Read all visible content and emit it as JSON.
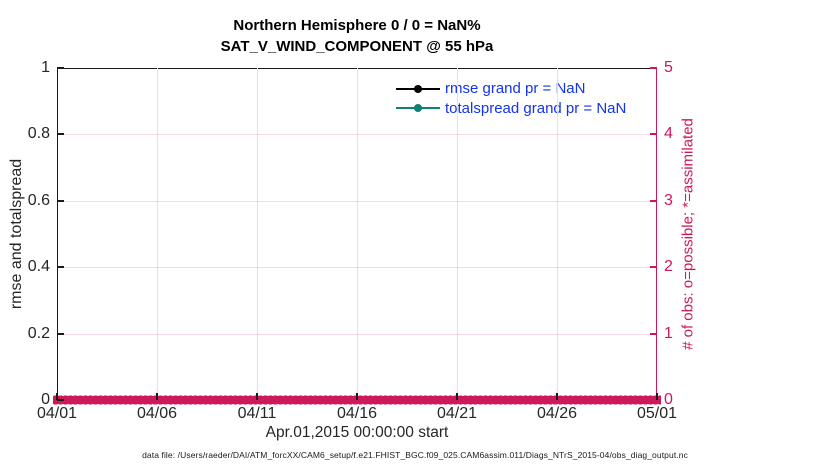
{
  "title": {
    "line1": "Northern Hemisphere 0 / 0 = NaN%",
    "line2": "SAT_V_WIND_COMPONENT @ 55 hPa"
  },
  "axes": {
    "left": {
      "label": "rmse and totalspread",
      "ticks": [
        "0",
        "0.2",
        "0.4",
        "0.6",
        "0.8",
        "1"
      ]
    },
    "right": {
      "label": "# of obs: o=possible; *=assimilated",
      "ticks": [
        "0",
        "1",
        "2",
        "3",
        "4",
        "5"
      ]
    },
    "x": {
      "label": "Apr.01,2015 00:00:00 start",
      "ticks": [
        "04/01",
        "04/06",
        "04/11",
        "04/16",
        "04/21",
        "04/26",
        "05/01"
      ]
    }
  },
  "legend": {
    "items": [
      {
        "label": "rmse grand pr = NaN",
        "color": "#000000"
      },
      {
        "label": "totalspread grand pr = NaN",
        "color": "#0E8177"
      }
    ]
  },
  "footer": "data file: /Users/raeder/DAI/ATM_forcXX/CAM6_setup/f.e21.FHIST_BGC.f09_025.CAM6assim.011/Diags_NTrS_2015-04/obs_diag_output.nc",
  "colors": {
    "crimson": "#CE185C",
    "teal": "#0E8177",
    "legend_text": "#1333EE",
    "tick_text": "#262626",
    "grid_gray": "#E2E2E2"
  },
  "chart_data": {
    "type": "line",
    "title": "Northern Hemisphere 0 / 0 = NaN%",
    "subtitle": "SAT_V_WIND_COMPONENT @ 55 hPa",
    "x": {
      "label": "Apr.01,2015 00:00:00 start",
      "tick_labels": [
        "04/01",
        "04/06",
        "04/11",
        "04/16",
        "04/21",
        "04/26",
        "05/01"
      ],
      "start": "2015-04-01",
      "end": "2015-05-01"
    },
    "y_left": {
      "label": "rmse and totalspread",
      "lim": [
        0,
        1
      ],
      "ticks": [
        0,
        0.2,
        0.4,
        0.6,
        0.8,
        1
      ]
    },
    "y_right": {
      "label": "# of obs: o=possible; *=assimilated",
      "lim": [
        0,
        5
      ],
      "ticks": [
        0,
        1,
        2,
        3,
        4,
        5
      ]
    },
    "grid": true,
    "legend_position": "top-right-inside",
    "series": [
      {
        "name": "rmse",
        "axis": "left",
        "color": "#000000",
        "marker": "filled-circle",
        "values": [],
        "summary": "grand pr = NaN; no curve plotted"
      },
      {
        "name": "totalspread",
        "axis": "left",
        "color": "#0E8177",
        "marker": "filled-circle",
        "values": [],
        "summary": "grand pr = NaN; no curve plotted"
      },
      {
        "name": "# obs possible (o)",
        "axis": "right",
        "color": "#CE185C",
        "marker": "o",
        "constant_value": 0,
        "summary": "0 observations possible at every assimilation time from 04/01 through 05/01 (dense marker band along y=0)"
      },
      {
        "name": "# obs assimilated (*)",
        "axis": "right",
        "color": "#CE185C",
        "marker": "*",
        "constant_value": 0,
        "summary": "0 observations assimilated at every assimilation time from 04/01 through 05/01 (dense marker band along y=0)"
      }
    ],
    "stats": {
      "possible": 0,
      "assimilated": 0,
      "percent": "NaN%"
    }
  }
}
